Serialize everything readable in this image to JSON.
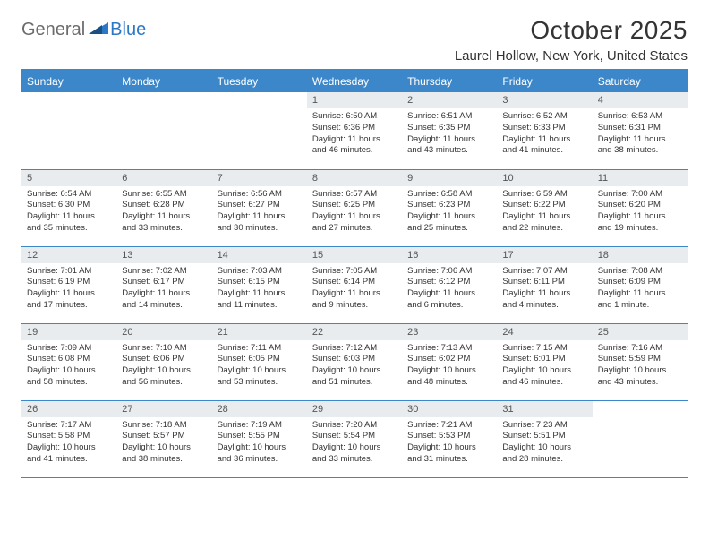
{
  "brand": {
    "text1": "General",
    "text2": "Blue"
  },
  "title": "October 2025",
  "location": "Laurel Hollow, New York, United States",
  "colors": {
    "header_bg": "#3c87c9",
    "header_text": "#ffffff",
    "daynum_bg": "#e9ecef",
    "border": "#3c87c9",
    "logo_gray": "#6b6b6b",
    "logo_blue": "#2b78c7",
    "page_bg": "#ffffff",
    "body_text": "#333333"
  },
  "day_headers": [
    "Sunday",
    "Monday",
    "Tuesday",
    "Wednesday",
    "Thursday",
    "Friday",
    "Saturday"
  ],
  "weeks": [
    [
      {
        "n": "",
        "lines": []
      },
      {
        "n": "",
        "lines": []
      },
      {
        "n": "",
        "lines": []
      },
      {
        "n": "1",
        "lines": [
          "Sunrise: 6:50 AM",
          "Sunset: 6:36 PM",
          "Daylight: 11 hours and 46 minutes."
        ]
      },
      {
        "n": "2",
        "lines": [
          "Sunrise: 6:51 AM",
          "Sunset: 6:35 PM",
          "Daylight: 11 hours and 43 minutes."
        ]
      },
      {
        "n": "3",
        "lines": [
          "Sunrise: 6:52 AM",
          "Sunset: 6:33 PM",
          "Daylight: 11 hours and 41 minutes."
        ]
      },
      {
        "n": "4",
        "lines": [
          "Sunrise: 6:53 AM",
          "Sunset: 6:31 PM",
          "Daylight: 11 hours and 38 minutes."
        ]
      }
    ],
    [
      {
        "n": "5",
        "lines": [
          "Sunrise: 6:54 AM",
          "Sunset: 6:30 PM",
          "Daylight: 11 hours and 35 minutes."
        ]
      },
      {
        "n": "6",
        "lines": [
          "Sunrise: 6:55 AM",
          "Sunset: 6:28 PM",
          "Daylight: 11 hours and 33 minutes."
        ]
      },
      {
        "n": "7",
        "lines": [
          "Sunrise: 6:56 AM",
          "Sunset: 6:27 PM",
          "Daylight: 11 hours and 30 minutes."
        ]
      },
      {
        "n": "8",
        "lines": [
          "Sunrise: 6:57 AM",
          "Sunset: 6:25 PM",
          "Daylight: 11 hours and 27 minutes."
        ]
      },
      {
        "n": "9",
        "lines": [
          "Sunrise: 6:58 AM",
          "Sunset: 6:23 PM",
          "Daylight: 11 hours and 25 minutes."
        ]
      },
      {
        "n": "10",
        "lines": [
          "Sunrise: 6:59 AM",
          "Sunset: 6:22 PM",
          "Daylight: 11 hours and 22 minutes."
        ]
      },
      {
        "n": "11",
        "lines": [
          "Sunrise: 7:00 AM",
          "Sunset: 6:20 PM",
          "Daylight: 11 hours and 19 minutes."
        ]
      }
    ],
    [
      {
        "n": "12",
        "lines": [
          "Sunrise: 7:01 AM",
          "Sunset: 6:19 PM",
          "Daylight: 11 hours and 17 minutes."
        ]
      },
      {
        "n": "13",
        "lines": [
          "Sunrise: 7:02 AM",
          "Sunset: 6:17 PM",
          "Daylight: 11 hours and 14 minutes."
        ]
      },
      {
        "n": "14",
        "lines": [
          "Sunrise: 7:03 AM",
          "Sunset: 6:15 PM",
          "Daylight: 11 hours and 11 minutes."
        ]
      },
      {
        "n": "15",
        "lines": [
          "Sunrise: 7:05 AM",
          "Sunset: 6:14 PM",
          "Daylight: 11 hours and 9 minutes."
        ]
      },
      {
        "n": "16",
        "lines": [
          "Sunrise: 7:06 AM",
          "Sunset: 6:12 PM",
          "Daylight: 11 hours and 6 minutes."
        ]
      },
      {
        "n": "17",
        "lines": [
          "Sunrise: 7:07 AM",
          "Sunset: 6:11 PM",
          "Daylight: 11 hours and 4 minutes."
        ]
      },
      {
        "n": "18",
        "lines": [
          "Sunrise: 7:08 AM",
          "Sunset: 6:09 PM",
          "Daylight: 11 hours and 1 minute."
        ]
      }
    ],
    [
      {
        "n": "19",
        "lines": [
          "Sunrise: 7:09 AM",
          "Sunset: 6:08 PM",
          "Daylight: 10 hours and 58 minutes."
        ]
      },
      {
        "n": "20",
        "lines": [
          "Sunrise: 7:10 AM",
          "Sunset: 6:06 PM",
          "Daylight: 10 hours and 56 minutes."
        ]
      },
      {
        "n": "21",
        "lines": [
          "Sunrise: 7:11 AM",
          "Sunset: 6:05 PM",
          "Daylight: 10 hours and 53 minutes."
        ]
      },
      {
        "n": "22",
        "lines": [
          "Sunrise: 7:12 AM",
          "Sunset: 6:03 PM",
          "Daylight: 10 hours and 51 minutes."
        ]
      },
      {
        "n": "23",
        "lines": [
          "Sunrise: 7:13 AM",
          "Sunset: 6:02 PM",
          "Daylight: 10 hours and 48 minutes."
        ]
      },
      {
        "n": "24",
        "lines": [
          "Sunrise: 7:15 AM",
          "Sunset: 6:01 PM",
          "Daylight: 10 hours and 46 minutes."
        ]
      },
      {
        "n": "25",
        "lines": [
          "Sunrise: 7:16 AM",
          "Sunset: 5:59 PM",
          "Daylight: 10 hours and 43 minutes."
        ]
      }
    ],
    [
      {
        "n": "26",
        "lines": [
          "Sunrise: 7:17 AM",
          "Sunset: 5:58 PM",
          "Daylight: 10 hours and 41 minutes."
        ]
      },
      {
        "n": "27",
        "lines": [
          "Sunrise: 7:18 AM",
          "Sunset: 5:57 PM",
          "Daylight: 10 hours and 38 minutes."
        ]
      },
      {
        "n": "28",
        "lines": [
          "Sunrise: 7:19 AM",
          "Sunset: 5:55 PM",
          "Daylight: 10 hours and 36 minutes."
        ]
      },
      {
        "n": "29",
        "lines": [
          "Sunrise: 7:20 AM",
          "Sunset: 5:54 PM",
          "Daylight: 10 hours and 33 minutes."
        ]
      },
      {
        "n": "30",
        "lines": [
          "Sunrise: 7:21 AM",
          "Sunset: 5:53 PM",
          "Daylight: 10 hours and 31 minutes."
        ]
      },
      {
        "n": "31",
        "lines": [
          "Sunrise: 7:23 AM",
          "Sunset: 5:51 PM",
          "Daylight: 10 hours and 28 minutes."
        ]
      },
      {
        "n": "",
        "lines": []
      }
    ]
  ]
}
